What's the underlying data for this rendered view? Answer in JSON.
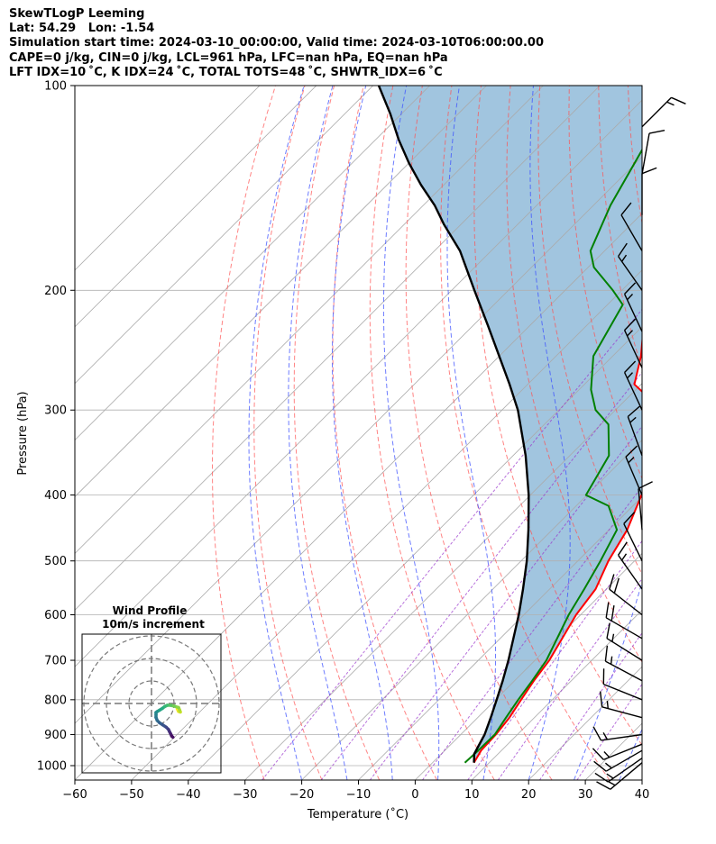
{
  "header": {
    "line1": "SkewTLogP Leeming",
    "line2": "Lat: 54.29   Lon: -1.54",
    "line3": "Simulation start time: 2024-03-10_00:00:00, Valid time: 2024-03-10T06:00:00.00",
    "line4": "CAPE=0 j/kg, CIN=0 j/kg, LCL=961 hPa, LFC=nan hPa, EQ=nan hPa",
    "line5": "LFT IDX=10 ˚C, K IDX=24 ˚C, TOTAL TOTS=48 ˚C, SHWTR_IDX=6 ˚C"
  },
  "chart_data": [
    {
      "type": "line",
      "subtype": "skew-t log-p",
      "xlabel": "Temperature (˚C)",
      "ylabel": "Pressure (hPa)",
      "xlim": [
        -60,
        40
      ],
      "ylim": [
        1050,
        100
      ],
      "yscale": "log",
      "x_ticks": [
        -60,
        -50,
        -40,
        -30,
        -20,
        -10,
        0,
        10,
        20,
        30,
        40
      ],
      "y_ticks": [
        100,
        200,
        300,
        400,
        500,
        600,
        700,
        800,
        900,
        1000
      ],
      "grid": true,
      "series": [
        {
          "role": "temperature",
          "color": "#ff0000",
          "points": [
            [
              7.3,
              990
            ],
            [
              6.4,
              950
            ],
            [
              6.2,
              900
            ],
            [
              5.6,
              850
            ],
            [
              4.5,
              800
            ],
            [
              3.4,
              750
            ],
            [
              2.5,
              700
            ],
            [
              -0.8,
              600
            ],
            [
              -1.9,
              550
            ],
            [
              -4.6,
              500
            ],
            [
              -6.8,
              450
            ],
            [
              -10.4,
              400
            ],
            [
              -15.4,
              350
            ],
            [
              -21.8,
              300
            ],
            [
              -31.2,
              275
            ],
            [
              -35.0,
              250
            ],
            [
              -40.0,
              225
            ],
            [
              -45.1,
              200
            ],
            [
              -51.3,
              175
            ],
            [
              -55.4,
              160
            ],
            [
              -57.5,
              150
            ],
            [
              -59.6,
              140
            ],
            [
              -60.2,
              130
            ],
            [
              -59.9,
              120
            ],
            [
              -57.8,
              110
            ],
            [
              -55.5,
              100
            ]
          ]
        },
        {
          "role": "dewpoint",
          "color": "#008000",
          "points": [
            [
              5.7,
              990
            ],
            [
              5.9,
              950
            ],
            [
              6.0,
              900
            ],
            [
              5.0,
              850
            ],
            [
              4.0,
              800
            ],
            [
              3.1,
              750
            ],
            [
              2.0,
              700
            ],
            [
              -2.1,
              600
            ],
            [
              -3.9,
              550
            ],
            [
              -6.0,
              500
            ],
            [
              -8.6,
              450
            ],
            [
              -14.3,
              415
            ],
            [
              -20.2,
              400
            ],
            [
              -23.1,
              350
            ],
            [
              -28.7,
              315
            ],
            [
              -33.5,
              300
            ],
            [
              -37.9,
              280
            ],
            [
              -43.4,
              250
            ],
            [
              -47.3,
              210
            ],
            [
              -51.6,
              200
            ],
            [
              -59.0,
              185
            ],
            [
              -62.5,
              175
            ],
            [
              -67.0,
              150
            ],
            [
              -72.0,
              120
            ],
            [
              -75.0,
              100
            ]
          ]
        },
        {
          "role": "parcel",
          "color": "#000000",
          "points": [
            [
              7.3,
              990
            ],
            [
              5.8,
              961
            ],
            [
              4.2,
              900
            ],
            [
              2.3,
              850
            ],
            [
              0.2,
              800
            ],
            [
              -2.1,
              750
            ],
            [
              -4.7,
              700
            ],
            [
              -10.9,
              600
            ],
            [
              -14.7,
              550
            ],
            [
              -19.0,
              500
            ],
            [
              -24.2,
              450
            ],
            [
              -30.3,
              400
            ],
            [
              -37.8,
              350
            ],
            [
              -47.2,
              300
            ],
            [
              -53.2,
              275
            ],
            [
              -60.0,
              250
            ],
            [
              -67.5,
              225
            ],
            [
              -76.0,
              200
            ],
            [
              -85.5,
              175
            ],
            [
              -93.0,
              160
            ],
            [
              -98.0,
              150
            ],
            [
              -104.0,
              140
            ],
            [
              -110.0,
              130
            ],
            [
              -116.0,
              120
            ],
            [
              -122.0,
              110
            ],
            [
              -129.0,
              100
            ]
          ]
        }
      ],
      "wind_barbs": [
        {
          "p": 990,
          "dir": 230,
          "spd": 14
        },
        {
          "p": 975,
          "dir": 235,
          "spd": 14
        },
        {
          "p": 950,
          "dir": 240,
          "spd": 15
        },
        {
          "p": 930,
          "dir": 248,
          "spd": 15
        },
        {
          "p": 900,
          "dir": 262,
          "spd": 14
        },
        {
          "p": 850,
          "dir": 285,
          "spd": 15
        },
        {
          "p": 800,
          "dir": 292,
          "spd": 12
        },
        {
          "p": 750,
          "dir": 298,
          "spd": 15
        },
        {
          "p": 700,
          "dir": 302,
          "spd": 16
        },
        {
          "p": 650,
          "dir": 300,
          "spd": 18
        },
        {
          "p": 600,
          "dir": 308,
          "spd": 20
        },
        {
          "p": 550,
          "dir": 325,
          "spd": 14
        },
        {
          "p": 500,
          "dir": 334,
          "spd": 12
        },
        {
          "p": 450,
          "dir": 355,
          "spd": 12
        },
        {
          "p": 400,
          "dir": 337,
          "spd": 13
        },
        {
          "p": 350,
          "dir": 340,
          "spd": 14
        },
        {
          "p": 300,
          "dir": 335,
          "spd": 14
        },
        {
          "p": 260,
          "dir": 335,
          "spd": 15
        },
        {
          "p": 230,
          "dir": 335,
          "spd": 15
        },
        {
          "p": 200,
          "dir": 325,
          "spd": 15
        },
        {
          "p": 175,
          "dir": 330,
          "spd": 12
        },
        {
          "p": 155,
          "dir": 0,
          "spd": 9
        },
        {
          "p": 135,
          "dir": 10,
          "spd": 12
        },
        {
          "p": 115,
          "dir": 45,
          "spd": 14
        }
      ],
      "dry_adiabats_theta_c": [
        -30,
        -20,
        -10,
        0,
        10,
        20,
        30,
        40,
        50,
        60,
        70,
        80,
        90,
        100,
        110,
        120,
        130,
        140,
        150
      ],
      "moist_adiabats_start_c": [
        -20,
        -12,
        -4,
        4,
        12,
        20,
        28,
        36
      ],
      "mixing_ratio_gkg": [
        0.4,
        1,
        2,
        4,
        7,
        10,
        16,
        24
      ]
    },
    {
      "type": "line",
      "subtype": "hodograph",
      "title": "Wind Profile",
      "subtitle": "10m/s increment",
      "rings_ms": [
        10,
        20,
        30
      ],
      "points_uv": [
        [
          11.4,
          -2.3
        ],
        [
          12.0,
          -3.5
        ],
        [
          12.8,
          -3.8
        ],
        [
          12.5,
          -3.0
        ],
        [
          12.0,
          -1.8
        ],
        [
          10.2,
          -1.2
        ],
        [
          8.5,
          -0.8
        ],
        [
          7.0,
          -0.8
        ],
        [
          5.8,
          -1.4
        ],
        [
          4.8,
          -2.2
        ],
        [
          3.5,
          -3.0
        ],
        [
          2.5,
          -3.6
        ],
        [
          2.0,
          -4.0
        ],
        [
          2.0,
          -5.0
        ],
        [
          2.0,
          -6.2
        ],
        [
          2.5,
          -7.5
        ],
        [
          3.5,
          -8.5
        ],
        [
          5.0,
          -9.5
        ],
        [
          6.5,
          -10.5
        ],
        [
          7.5,
          -11.5
        ],
        [
          8.0,
          -12.5
        ],
        [
          8.5,
          -13.5
        ],
        [
          9.0,
          -14.5
        ],
        [
          9.5,
          -15.0
        ]
      ]
    }
  ]
}
